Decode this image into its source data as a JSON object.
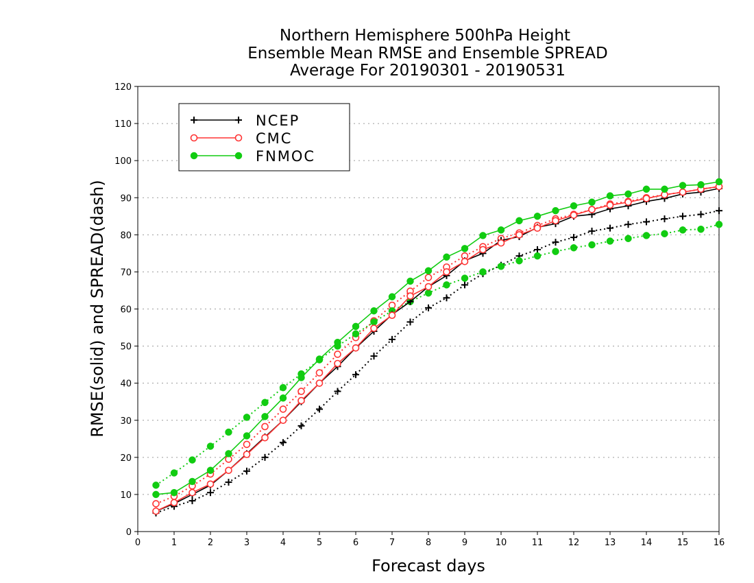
{
  "chart_data": {
    "type": "line",
    "title": [
      "Northern Hemisphere 500hPa Height",
      "Ensemble Mean RMSE and Ensemble SPREAD",
      "Average For 20190301 - 20190531"
    ],
    "xlabel": "Forecast days",
    "ylabel": "RMSE(solid) and SPREAD(dash)",
    "xlim": [
      0,
      16
    ],
    "ylim": [
      0,
      120
    ],
    "xticks": [
      0,
      1,
      2,
      3,
      4,
      5,
      6,
      7,
      8,
      9,
      10,
      11,
      12,
      13,
      14,
      15,
      16
    ],
    "yticks": [
      0,
      10,
      20,
      30,
      40,
      50,
      60,
      70,
      80,
      90,
      100,
      110,
      120
    ],
    "grid": "horizontal dotted",
    "legend_position": "top-left",
    "x": [
      0.5,
      1,
      1.5,
      2,
      2.5,
      3,
      3.5,
      4,
      4.5,
      5,
      5.5,
      6,
      6.5,
      7,
      7.5,
      8,
      8.5,
      9,
      9.5,
      10,
      10.5,
      11,
      11.5,
      12,
      12.5,
      13,
      13.5,
      14,
      14.5,
      15,
      15.5,
      16
    ],
    "series": [
      {
        "name": "NCEP",
        "color": "#000000",
        "marker": "plus",
        "style": "solid",
        "values": [
          5.5,
          7.5,
          10,
          12.5,
          16.5,
          21,
          25.5,
          30,
          35,
          40,
          44.5,
          49.5,
          54,
          58.5,
          62,
          66,
          69,
          73,
          75,
          78.5,
          79.5,
          82,
          83,
          85,
          85.5,
          87,
          87.8,
          89,
          89.8,
          91,
          91.5,
          92.5
        ]
      },
      {
        "name": "CMC",
        "color": "#ff3333",
        "marker": "open-circle",
        "style": "solid",
        "values": [
          5.5,
          7.8,
          10.5,
          12.8,
          16.5,
          20.8,
          25.3,
          30,
          35.3,
          40,
          45.3,
          49.5,
          54.8,
          58.3,
          63.5,
          66,
          70,
          72.8,
          76,
          77.8,
          80,
          81.8,
          83.8,
          85.3,
          86.8,
          88,
          88.8,
          89.8,
          90.8,
          91.5,
          92.3,
          93
        ]
      },
      {
        "name": "FNMOC",
        "color": "#11cc11",
        "marker": "filled-circle",
        "style": "solid",
        "values": [
          10,
          10.5,
          13.5,
          16.5,
          21,
          25.8,
          31,
          36,
          41.5,
          46.5,
          51,
          55.3,
          59.5,
          63.3,
          67.5,
          70.3,
          74,
          76.3,
          79.8,
          81.3,
          83.8,
          85,
          86.5,
          87.8,
          88.8,
          90.5,
          91,
          92.3,
          92.3,
          93.3,
          93.5,
          94.3
        ]
      },
      {
        "name": "",
        "color": "#000000",
        "marker": "plus",
        "style": "dotted",
        "values": [
          5,
          6.8,
          8.3,
          10.5,
          13.3,
          16.3,
          20,
          24,
          28.5,
          33,
          37.8,
          42.3,
          47.3,
          51.8,
          56.5,
          60.3,
          63,
          66.5,
          69.5,
          71.8,
          74.3,
          76,
          78,
          79.3,
          81,
          81.8,
          82.8,
          83.5,
          84.3,
          85,
          85.5,
          86.5
        ]
      },
      {
        "name": "",
        "color": "#ff3333",
        "marker": "open-circle",
        "style": "dotted",
        "values": [
          7.5,
          9.5,
          12.3,
          15.5,
          19.5,
          23.5,
          28.3,
          33,
          37.8,
          42.8,
          47.8,
          52.3,
          56.8,
          61,
          64.8,
          68.5,
          71.3,
          74.3,
          76.8,
          79,
          80.5,
          82.5,
          84.3,
          85.5,
          86.8,
          88.3,
          89,
          90,
          90.8,
          91.5,
          92.3,
          93
        ]
      },
      {
        "name": "",
        "color": "#11cc11",
        "marker": "filled-circle",
        "style": "dotted",
        "values": [
          12.5,
          15.8,
          19.3,
          23,
          26.8,
          30.8,
          34.8,
          38.8,
          42.5,
          46.3,
          50,
          53.3,
          56.5,
          59.5,
          62,
          64.3,
          66.5,
          68.3,
          70,
          71.5,
          73,
          74.3,
          75.5,
          76.5,
          77.3,
          78.3,
          79,
          79.8,
          80.3,
          81.3,
          81.5,
          82.8
        ]
      }
    ]
  }
}
